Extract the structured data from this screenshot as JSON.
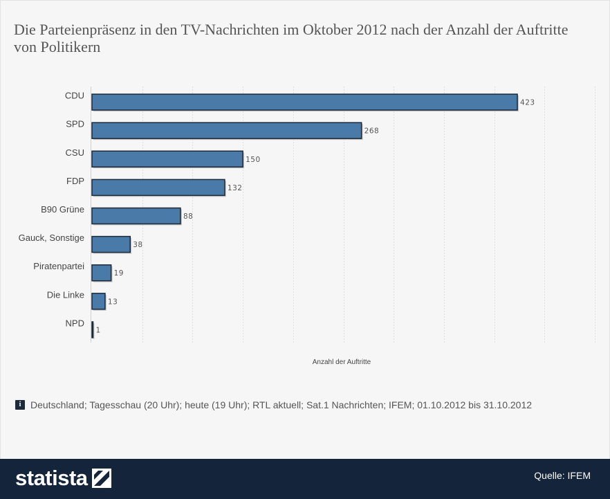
{
  "title": "Die Parteienpräsenz in den TV-Nachrichten im Oktober 2012 nach der Anzahl der Auftritte von Politikern",
  "note": {
    "icon": "info-icon",
    "text": "Deutschland; Tagesschau (20 Uhr); heute (19 Uhr); RTL aktuell; Sat.1 Nachrichten; IFEM; 01.10.2012 bis 31.10.2012"
  },
  "footer": {
    "brand": "statista",
    "source": "Quelle: IFEM"
  },
  "colors": {
    "bar": "#4a7aa8",
    "bar_border": "#1c2836",
    "grid": "#dddddd",
    "footer_bg": "#14243a"
  },
  "chart_data": {
    "type": "bar",
    "orientation": "horizontal",
    "title": "Die Parteienpräsenz in den TV-Nachrichten im Oktober 2012 nach der Anzahl der Auftritte von Politikern",
    "xlabel": "Anzahl der Auftritte",
    "ylabel": "",
    "categories": [
      "CDU",
      "SPD",
      "CSU",
      "FDP",
      "B90 Grüne",
      "Gauck, Sonstige",
      "Piratenpartei",
      "Die Linke",
      "NPD"
    ],
    "values": [
      423,
      268,
      150,
      132,
      88,
      38,
      19,
      13,
      1
    ],
    "xlim": [
      0,
      500
    ],
    "grid": true,
    "data_labels": true
  }
}
